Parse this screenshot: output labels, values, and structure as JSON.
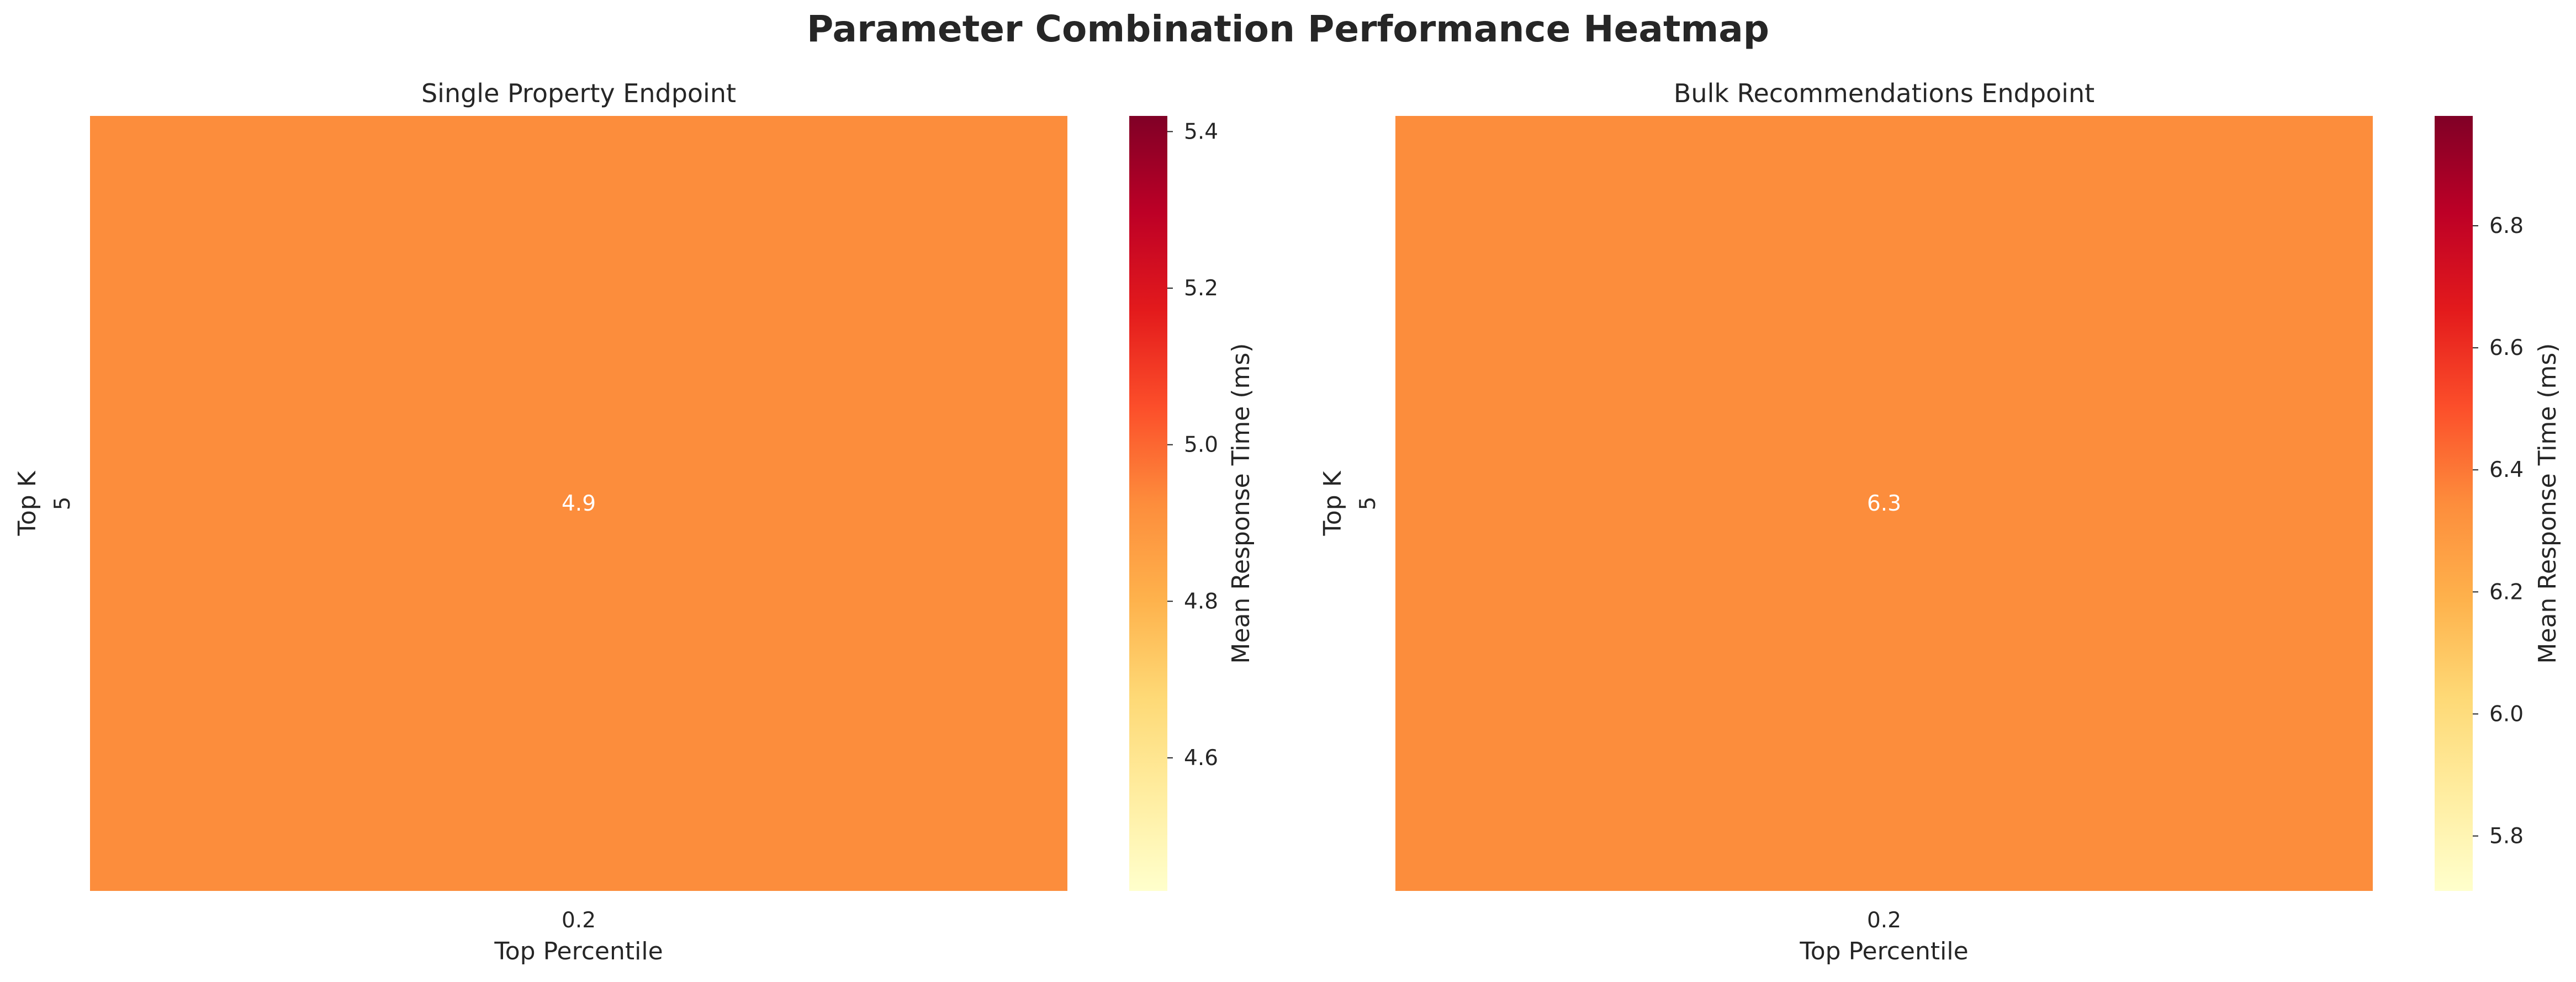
{
  "figure_title": "Parameter Combination Performance Heatmap",
  "colormap": "YlOrRd",
  "chart_data": [
    {
      "type": "heatmap",
      "title": "Single Property Endpoint",
      "xlabel": "Top Percentile",
      "ylabel": "Top K",
      "x_categories": [
        "0.2"
      ],
      "y_categories": [
        "5"
      ],
      "values": [
        [
          4.9
        ]
      ],
      "annotations": [
        [
          "4.9"
        ]
      ],
      "cell_color": "#fc8d3c",
      "colorbar": {
        "label": "Mean Response Time (ms)",
        "range": [
          4.43,
          5.42
        ],
        "ticks": [
          "4.6",
          "4.8",
          "5.0",
          "5.2",
          "5.4"
        ],
        "tick_values": [
          4.6,
          4.8,
          5.0,
          5.2,
          5.4
        ]
      }
    },
    {
      "type": "heatmap",
      "title": "Bulk Recommendations Endpoint",
      "xlabel": "Top Percentile",
      "ylabel": "Top K",
      "x_categories": [
        "0.2"
      ],
      "y_categories": [
        "5"
      ],
      "values": [
        [
          6.3
        ]
      ],
      "annotations": [
        [
          "6.3"
        ]
      ],
      "cell_color": "#fc8d3c",
      "colorbar": {
        "label": "Mean Response Time (ms)",
        "range": [
          5.71,
          6.98
        ],
        "ticks": [
          "5.8",
          "6.0",
          "6.2",
          "6.4",
          "6.6",
          "6.8"
        ],
        "tick_values": [
          5.8,
          6.0,
          6.2,
          6.4,
          6.6,
          6.8
        ]
      }
    }
  ]
}
